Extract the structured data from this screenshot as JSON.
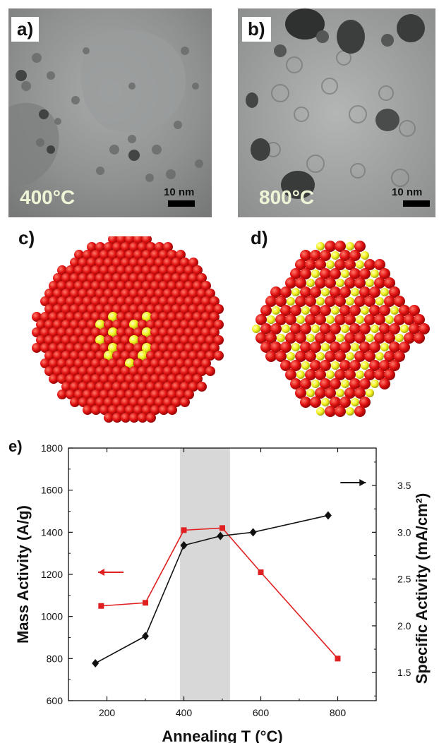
{
  "panels": {
    "a": {
      "label": "a)",
      "temperature": "400°C",
      "scale": "10 nm"
    },
    "b": {
      "label": "b)",
      "temperature": "800°C",
      "scale": "10 nm"
    },
    "c": {
      "label": "c)"
    },
    "d": {
      "label": "d)"
    },
    "e": {
      "label": "e)"
    }
  },
  "colors": {
    "pt_atom": "#e01010",
    "ni_atom": "#f2f21a",
    "mass_series": "#e02020",
    "specific_series": "#111111",
    "highlight_band": "#d8d8d8"
  },
  "chart_data": {
    "type": "line",
    "xlabel": "Annealing T (°C)",
    "ylabel": "Mass Activity (A/g)",
    "y2label": "Specific Activity (mA/cm²)",
    "xlim": [
      100,
      900
    ],
    "ylim": [
      600,
      1800
    ],
    "y2lim": [
      1.2,
      3.9
    ],
    "xticks": [
      "200",
      "400",
      "600",
      "800"
    ],
    "yticks": [
      "600",
      "800",
      "1000",
      "1200",
      "1400",
      "1600",
      "1800"
    ],
    "y2ticks": [
      "1.5",
      "2.0",
      "2.5",
      "3.0",
      "3.5"
    ],
    "highlight_range": [
      390,
      520
    ],
    "series": [
      {
        "axis": "left",
        "color": "#e02020",
        "marker": "square",
        "x": [
          185,
          300,
          400,
          500,
          600,
          800
        ],
        "y": [
          1050,
          1065,
          1410,
          1420,
          1210,
          800
        ]
      },
      {
        "axis": "right",
        "color": "#111111",
        "marker": "diamond",
        "x": [
          170,
          300,
          400,
          495,
          580,
          775
        ],
        "y": [
          1.6,
          1.89,
          2.86,
          2.96,
          3.0,
          3.18
        ]
      }
    ],
    "arrows": [
      {
        "direction": "left",
        "color": "#e02020",
        "x": 210,
        "y": 1210
      },
      {
        "direction": "right",
        "color": "#111111",
        "x": 840,
        "y": 3.53
      }
    ]
  }
}
